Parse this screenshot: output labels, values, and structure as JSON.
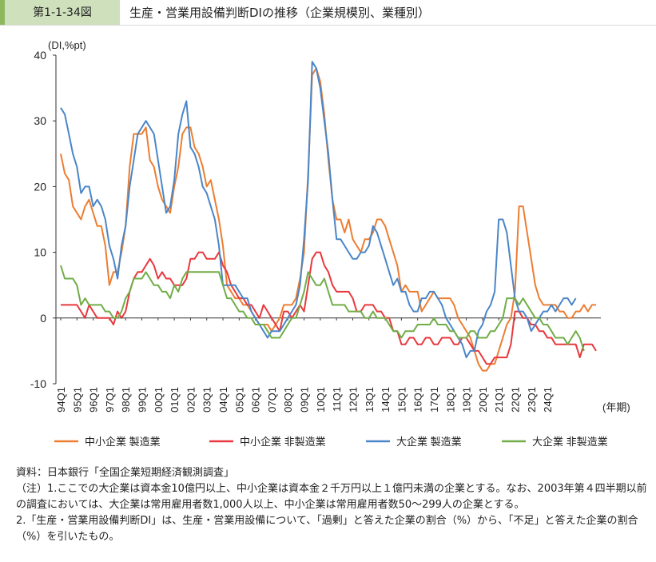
{
  "header": {
    "figure_number": "第1-1-34図",
    "title": "生産・営業用設備判断DIの推移（企業規模別、業種別）"
  },
  "colors": {
    "sme_mfg": "#ed7d31",
    "sme_nonmfg": "#e8383d",
    "large_mfg": "#4a86c8",
    "large_nonmfg": "#70ad47"
  },
  "chart_data": {
    "type": "line",
    "title": "",
    "ylabel": "(DI,%pt)",
    "xlabel": "(年期)",
    "ylim": [
      -10,
      40
    ],
    "yticks": [
      -10,
      0,
      10,
      20,
      30,
      40
    ],
    "x_start": "1994Q1",
    "x_tick_labels": [
      "94Q1",
      "95Q1",
      "96Q1",
      "97Q1",
      "98Q1",
      "99Q1",
      "00Q1",
      "01Q1",
      "02Q1",
      "03Q1",
      "04Q1",
      "05Q1",
      "06Q1",
      "07Q1",
      "08Q1",
      "09Q1",
      "10Q1",
      "11Q1",
      "12Q1",
      "13Q1",
      "14Q1",
      "15Q1",
      "16Q1",
      "17Q1",
      "18Q1",
      "19Q1",
      "20Q1",
      "21Q1",
      "22Q1",
      "23Q1",
      "24Q1"
    ],
    "grid": false,
    "legend_position": "bottom",
    "series": [
      {
        "name": "中小企業 製造業",
        "color_key": "sme_mfg",
        "values": [
          25,
          22,
          21,
          17,
          16,
          15,
          17,
          18,
          16,
          14,
          14,
          11,
          5,
          7,
          7,
          10,
          14,
          23,
          28,
          28,
          28,
          29,
          24,
          23,
          20,
          18,
          17,
          16,
          20,
          23,
          28,
          29,
          29,
          26,
          25,
          23,
          20,
          21,
          18,
          15,
          11,
          5,
          4,
          3,
          3,
          2,
          2,
          1,
          0,
          -1,
          -1,
          -1,
          -2,
          -1,
          0,
          2,
          2,
          2,
          3,
          6,
          10,
          22,
          37,
          38,
          36,
          31,
          24,
          18,
          15,
          15,
          13,
          15,
          12,
          11,
          10,
          12,
          12,
          13,
          15,
          15,
          14,
          12,
          10,
          8,
          4,
          5,
          4,
          4,
          4,
          1,
          2,
          3,
          4,
          3,
          3,
          3,
          3,
          2,
          0,
          -1,
          -2,
          -3,
          -5,
          -7,
          -8,
          -8,
          -7,
          -7,
          -5,
          -3,
          -1,
          0,
          4,
          17,
          17,
          13,
          9,
          5,
          3,
          2,
          2,
          2,
          2,
          1,
          1,
          0,
          0,
          1,
          1,
          2,
          1,
          2,
          2
        ]
      },
      {
        "name": "中小企業 非製造業",
        "color_key": "sme_nonmfg",
        "values": [
          2,
          2,
          2,
          2,
          2,
          1,
          0,
          2,
          1,
          0,
          0,
          0,
          0,
          -1,
          1,
          0,
          1,
          4,
          6,
          7,
          7,
          8,
          9,
          8,
          6,
          7,
          6,
          6,
          5,
          5,
          5,
          6,
          9,
          9,
          10,
          10,
          9,
          9,
          9,
          10,
          8,
          7,
          5,
          4,
          3,
          3,
          2,
          2,
          1,
          0,
          2,
          1,
          0,
          -1,
          -2,
          1,
          1,
          0,
          1,
          2,
          1,
          5,
          9,
          10,
          10,
          8,
          7,
          5,
          4,
          4,
          4,
          4,
          3,
          1,
          1,
          2,
          2,
          2,
          1,
          1,
          0,
          0,
          -2,
          -2,
          -4,
          -4,
          -3,
          -3,
          -4,
          -4,
          -3,
          -3,
          -4,
          -4,
          -3,
          -3,
          -3,
          -4,
          -4,
          -3,
          -3,
          -4,
          -5,
          -5,
          -6,
          -7,
          -7,
          -6,
          -6,
          -6,
          -6,
          -4,
          1,
          1,
          0,
          0,
          -1,
          -1,
          -2,
          -2,
          -3,
          -3,
          -4,
          -4,
          -4,
          -4,
          -4,
          -4,
          -6,
          -4,
          -4,
          -4,
          -5
        ]
      },
      {
        "name": "大企業 製造業",
        "color_key": "large_mfg",
        "values": [
          32,
          31,
          28,
          25,
          23,
          19,
          20,
          20,
          17,
          18,
          17,
          15,
          11,
          9,
          6,
          11,
          14,
          20,
          24,
          28,
          29,
          30,
          29,
          28,
          24,
          20,
          16,
          17,
          21,
          28,
          31,
          33,
          26,
          25,
          23,
          20,
          19,
          17,
          15,
          11,
          5,
          5,
          5,
          5,
          4,
          3,
          3,
          1,
          0,
          -1,
          -2,
          -3,
          -2,
          -2,
          -2,
          -1,
          0,
          1,
          2,
          5,
          12,
          21,
          39,
          38,
          35,
          30,
          25,
          18,
          12,
          12,
          11,
          10,
          9,
          9,
          10,
          10,
          11,
          14,
          13,
          11,
          9,
          7,
          5,
          6,
          4,
          4,
          2,
          1,
          1,
          3,
          3,
          4,
          4,
          3,
          2,
          0,
          -1,
          -2,
          -3,
          -4,
          -6,
          -5,
          -5,
          -2,
          -1,
          1,
          2,
          4,
          15,
          15,
          13,
          8,
          3,
          1,
          1,
          0,
          -2,
          -1,
          0,
          1,
          1,
          2,
          1,
          2,
          3,
          3,
          2,
          3
        ]
      },
      {
        "name": "大企業 非製造業",
        "color_key": "large_nonmfg",
        "values": [
          8,
          6,
          6,
          6,
          5,
          2,
          3,
          2,
          2,
          2,
          2,
          1,
          1,
          0,
          0,
          1,
          3,
          4,
          6,
          6,
          6,
          7,
          6,
          5,
          5,
          4,
          4,
          3,
          5,
          4,
          6,
          7,
          7,
          7,
          7,
          7,
          7,
          7,
          7,
          7,
          5,
          3,
          3,
          2,
          1,
          1,
          0,
          0,
          -1,
          -1,
          -1,
          -2,
          -3,
          -3,
          -3,
          -2,
          -1,
          0,
          0,
          2,
          4,
          7,
          6,
          5,
          5,
          6,
          4,
          2,
          2,
          2,
          2,
          1,
          1,
          1,
          1,
          0,
          0,
          1,
          0,
          0,
          0,
          -1,
          -2,
          -2,
          -3,
          -2,
          -2,
          -2,
          -1,
          -1,
          -1,
          -1,
          0,
          -1,
          -1,
          -1,
          -2,
          -2,
          -3,
          -3,
          -3,
          -2,
          -2,
          -3,
          -3,
          -3,
          -2,
          -2,
          -1,
          0,
          3,
          3,
          3,
          2,
          3,
          2,
          1,
          0,
          0,
          -1,
          -1,
          -2,
          -3,
          -3,
          -3,
          -4,
          -3,
          -2,
          -3,
          -5
        ]
      }
    ]
  },
  "notes": [
    "資料：日本銀行「全国企業短期経済観測調査」",
    "（注）1.ここでの大企業は資本金10億円以上、中小企業は資本金２千万円以上１億円未満の企業とする。なお、2003年第４四半期以前の調査においては、大企業は常用雇用者数1,000人以上、中小企業は常用雇用者数50～299人の企業とする。",
    "2.「生産・営業用設備判断DI」は、生産・営業用設備について、「過剰」と答えた企業の割合（%）から、「不足」と答えた企業の割合（%）を引いたもの。"
  ]
}
